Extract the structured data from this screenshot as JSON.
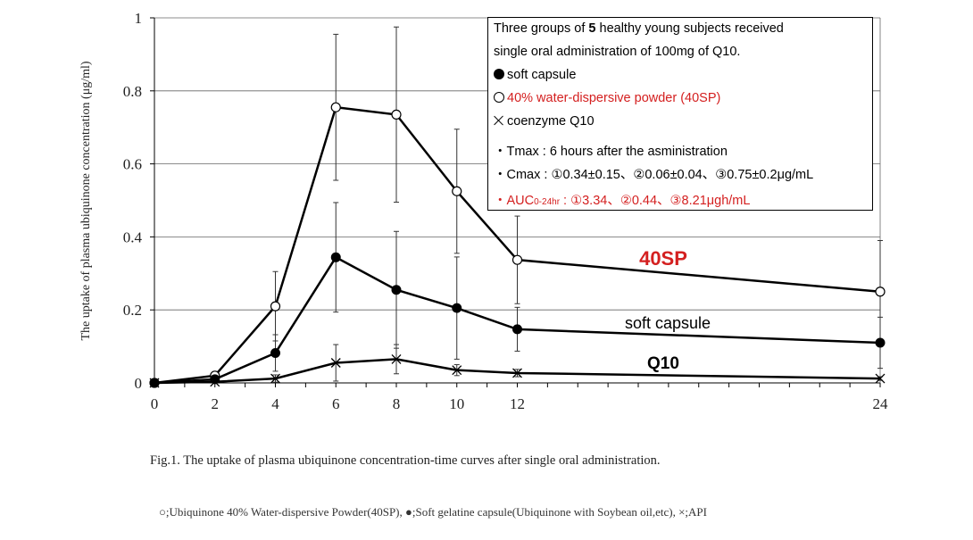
{
  "chart_data": {
    "type": "line",
    "ylabel": "The uptake of plasma ubiquinone concentration (μg/ml)",
    "xlabel": "",
    "xlim": [
      0,
      24
    ],
    "ylim": [
      0,
      1
    ],
    "x_ticks": [
      0,
      2,
      4,
      6,
      8,
      10,
      12,
      24
    ],
    "y_ticks": [
      {
        "value": 0,
        "label": "0"
      },
      {
        "value": 0.2,
        "label": "0.2"
      },
      {
        "value": 0.4,
        "label": "0.4"
      },
      {
        "value": 0.6,
        "label": "0.6"
      },
      {
        "value": 0.8,
        "label": "0.8"
      },
      {
        "value": 1,
        "label": "1"
      }
    ],
    "grid": "horizontal",
    "x": [
      0,
      2,
      4,
      6,
      8,
      10,
      12,
      24
    ],
    "series": [
      {
        "name": "40SP",
        "marker": "open-circle",
        "label_color": "#d42020",
        "values": [
          0,
          0.02,
          0.21,
          0.755,
          0.735,
          0.525,
          0.337,
          0.25
        ],
        "errors": [
          0,
          0.01,
          0.095,
          0.2,
          0.24,
          0.17,
          0.12,
          0.14
        ]
      },
      {
        "name": "soft capsule",
        "marker": "filled-circle",
        "label_color": "#000000",
        "values": [
          0,
          0.01,
          0.082,
          0.344,
          0.255,
          0.205,
          0.147,
          0.11
        ],
        "errors": [
          0,
          0.005,
          0.05,
          0.15,
          0.16,
          0.14,
          0.06,
          0.07
        ]
      },
      {
        "name": "Q10",
        "marker": "cross",
        "label_color": "#000000",
        "values": [
          0,
          0.003,
          0.012,
          0.055,
          0.065,
          0.035,
          0.027,
          0.012
        ],
        "errors": [
          0,
          0.002,
          0.01,
          0.05,
          0.04,
          0.015,
          0.01,
          0.005
        ]
      }
    ]
  },
  "info": {
    "line1_pre": "Three groups of ",
    "line1_bold": "5",
    "line1_post": " healthy young subjects received",
    "line2": "single oral administration of 100mg of Q10.",
    "legend_soft": "soft capsule",
    "legend_40sp": "40% water-dispersive powder (40SP)",
    "legend_q10": "coenzyme Q10",
    "tmax": "・Tmax : 6 hours after the asministration",
    "cmax": "・Cmax : ①0.34±0.15、②0.06±0.04、③0.75±0.2μg/mL",
    "auc_prefix": "・AUC",
    "auc_sub": "0-24hr",
    "auc_rest": " : ①3.34、②0.44、③8.21μgh/mL"
  },
  "caption": "Fig.1. The uptake of plasma ubiquinone concentration-time curves after single oral administration.",
  "footnote": "○;Ubiquinone 40% Water-dispersive Powder(40SP), ●;Soft gelatine capsule(Ubiquinone with Soybean oil,etc), ×;API"
}
